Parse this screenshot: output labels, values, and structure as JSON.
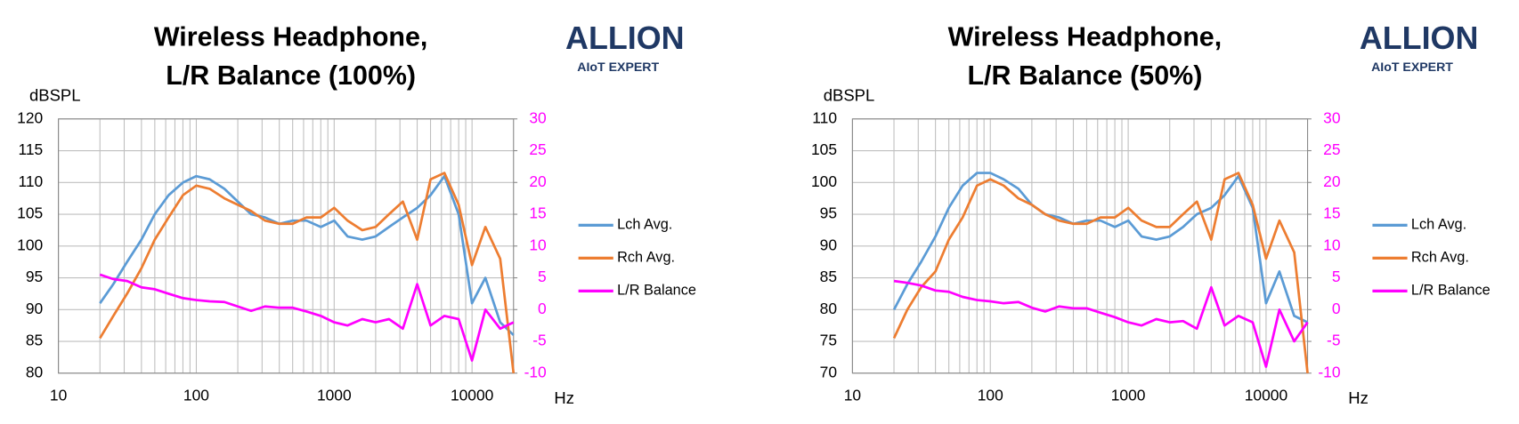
{
  "chart_data": [
    {
      "type": "line",
      "title": [
        "Wireless Headphone,",
        "L/R Balance (100%)"
      ],
      "logo": "ALLION",
      "logo_tagline": "AIoT EXPERT",
      "ylabel": "dBSPL",
      "xlabel": "Hz",
      "x": [
        20,
        25,
        31.5,
        40,
        50,
        63,
        80,
        100,
        125,
        160,
        200,
        250,
        315,
        400,
        500,
        630,
        800,
        1000,
        1250,
        1600,
        2000,
        2500,
        3150,
        4000,
        5000,
        6300,
        8000,
        10000,
        12500,
        16000,
        20000
      ],
      "series": [
        {
          "name": "Lch Avg.",
          "color": "#5b9bd5",
          "values": [
            91,
            94,
            97.5,
            101,
            105,
            108,
            110,
            111,
            110.5,
            109,
            107,
            105,
            104.5,
            103.5,
            104,
            104,
            103,
            104,
            101.5,
            101,
            101.5,
            103,
            104.5,
            106,
            108,
            111,
            105,
            91,
            95,
            88,
            86
          ]
        },
        {
          "name": "Rch Avg.",
          "color": "#ed7d31",
          "values": [
            85.5,
            89,
            92.5,
            96.5,
            101,
            104.5,
            108,
            109.5,
            109,
            107.5,
            106.5,
            105.5,
            104,
            103.5,
            103.5,
            104.5,
            104.5,
            106,
            104,
            102.5,
            103,
            105,
            107,
            101,
            110.5,
            111.5,
            106.5,
            97,
            103,
            98,
            80
          ]
        },
        {
          "name": " L/R Balance",
          "color": "#ff00ff",
          "axis": "y2",
          "values": [
            5.5,
            4.8,
            4.5,
            3.5,
            3.2,
            2.5,
            1.8,
            1.5,
            1.3,
            1.2,
            0.5,
            -0.2,
            0.5,
            0.3,
            0.3,
            -0.3,
            -1,
            -2,
            -2.5,
            -1.5,
            -2,
            -1.5,
            -3,
            4,
            -2.5,
            -1,
            -1.5,
            -8,
            0,
            -3,
            -2
          ]
        }
      ],
      "xlim": [
        10,
        20000
      ],
      "xticks": [
        10,
        100,
        1000,
        10000
      ],
      "xgrid": [
        20,
        30,
        40,
        50,
        60,
        70,
        80,
        90,
        200,
        300,
        400,
        500,
        600,
        700,
        800,
        900,
        2000,
        3000,
        4000,
        5000,
        6000,
        7000,
        8000,
        9000
      ],
      "log_x": true,
      "ylim": [
        80,
        120
      ],
      "yticks": [
        80,
        85,
        90,
        95,
        100,
        105,
        110,
        115,
        120
      ],
      "y2lim": [
        -10,
        30
      ],
      "y2ticks": [
        -10,
        -5,
        0,
        5,
        10,
        15,
        20,
        25,
        30
      ],
      "y2color": "#ff00ff",
      "grid": true,
      "legend": "right"
    },
    {
      "type": "line",
      "title": [
        "Wireless Headphone,",
        "L/R Balance (50%)"
      ],
      "logo": "ALLION",
      "logo_tagline": "AIoT EXPERT",
      "ylabel": "dBSPL",
      "xlabel": "Hz",
      "x": [
        20,
        25,
        31.5,
        40,
        50,
        63,
        80,
        100,
        125,
        160,
        200,
        250,
        315,
        400,
        500,
        630,
        800,
        1000,
        1250,
        1600,
        2000,
        2500,
        3150,
        4000,
        5000,
        6300,
        8000,
        10000,
        12500,
        16000,
        20000
      ],
      "series": [
        {
          "name": "Lch Avg.",
          "color": "#5b9bd5",
          "values": [
            80,
            84,
            87.5,
            91.5,
            96,
            99.5,
            101.5,
            101.5,
            100.5,
            99,
            96.5,
            95,
            94.5,
            93.5,
            94,
            94,
            93,
            94,
            91.5,
            91,
            91.5,
            93,
            95,
            96,
            98,
            101,
            96,
            81,
            86,
            79,
            78
          ]
        },
        {
          "name": "Rch Avg.",
          "color": "#ed7d31",
          "values": [
            75.5,
            80,
            83.5,
            86,
            91,
            94.5,
            99.5,
            100.5,
            99.5,
            97.5,
            96.5,
            95,
            94,
            93.5,
            93.5,
            94.5,
            94.5,
            96,
            94,
            93,
            93,
            95,
            97,
            91,
            100.5,
            101.5,
            96.5,
            88,
            94,
            89,
            70
          ]
        },
        {
          "name": "L/R Balance",
          "color": "#ff00ff",
          "axis": "y2",
          "values": [
            4.5,
            4.2,
            3.8,
            3,
            2.8,
            2,
            1.5,
            1.3,
            1,
            1.2,
            0.3,
            -0.3,
            0.5,
            0.2,
            0.2,
            -0.5,
            -1.2,
            -2,
            -2.5,
            -1.5,
            -2,
            -1.8,
            -3,
            3.5,
            -2.5,
            -1,
            -2,
            -9,
            0,
            -5,
            -2
          ]
        }
      ],
      "xlim": [
        10,
        20000
      ],
      "xticks": [
        10,
        100,
        1000,
        10000
      ],
      "xgrid": [
        20,
        30,
        40,
        50,
        60,
        70,
        80,
        90,
        200,
        300,
        400,
        500,
        600,
        700,
        800,
        900,
        2000,
        3000,
        4000,
        5000,
        6000,
        7000,
        8000,
        9000
      ],
      "log_x": true,
      "ylim": [
        70,
        110
      ],
      "yticks": [
        70,
        75,
        80,
        85,
        90,
        95,
        100,
        105,
        110
      ],
      "y2lim": [
        -10,
        30
      ],
      "y2ticks": [
        -10,
        -5,
        0,
        5,
        10,
        15,
        20,
        25,
        30
      ],
      "y2color": "#ff00ff",
      "grid": true,
      "legend": "right"
    }
  ]
}
